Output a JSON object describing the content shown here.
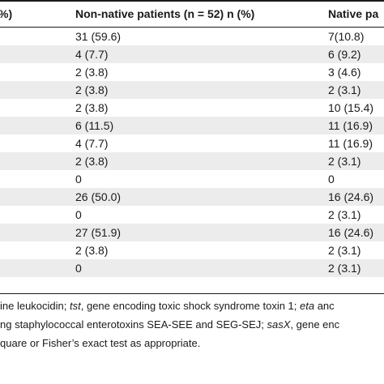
{
  "header": {
    "frag": "%)",
    "col1": "Non-native patients (n = 52) n (%)",
    "col2": "Native pa"
  },
  "rows": [
    {
      "c1": "31 (59.6)",
      "c2": "7(10.8)"
    },
    {
      "c1": "4 (7.7)",
      "c2": "6 (9.2)"
    },
    {
      "c1": "2 (3.8)",
      "c2": "3 (4.6)"
    },
    {
      "c1": "2 (3.8)",
      "c2": "2 (3.1)"
    },
    {
      "c1": "2 (3.8)",
      "c2": "10 (15.4)"
    },
    {
      "c1": "6 (11.5)",
      "c2": "11 (16.9)"
    },
    {
      "c1": "4 (7.7)",
      "c2": "11 (16.9)"
    },
    {
      "c1": "2 (3.8)",
      "c2": "2 (3.1)"
    },
    {
      "c1": "0",
      "c2": "0"
    },
    {
      "c1": "26 (50.0)",
      "c2": "16 (24.6)"
    },
    {
      "c1": "0",
      "c2": "2 (3.1)"
    },
    {
      "c1": "27 (51.9)",
      "c2": "16 (24.6)"
    },
    {
      "c1": "2 (3.8)",
      "c2": "2 (3.1)"
    },
    {
      "c1": "0",
      "c2": "2 (3.1)"
    }
  ],
  "footnotes": {
    "line1_a": "ine leukocidin; ",
    "line1_b": "tst",
    "line1_c": ", gene encoding toxic shock syndrome toxin 1; ",
    "line1_d": "eta",
    "line1_e": " anc",
    "line2_a": "ng staphylococcal enterotoxins SEA-SEE and SEG-SEJ; ",
    "line2_b": "sasX",
    "line2_c": ", gene enc",
    "line3": "quare or Fisher’s exact test as appropriate."
  }
}
